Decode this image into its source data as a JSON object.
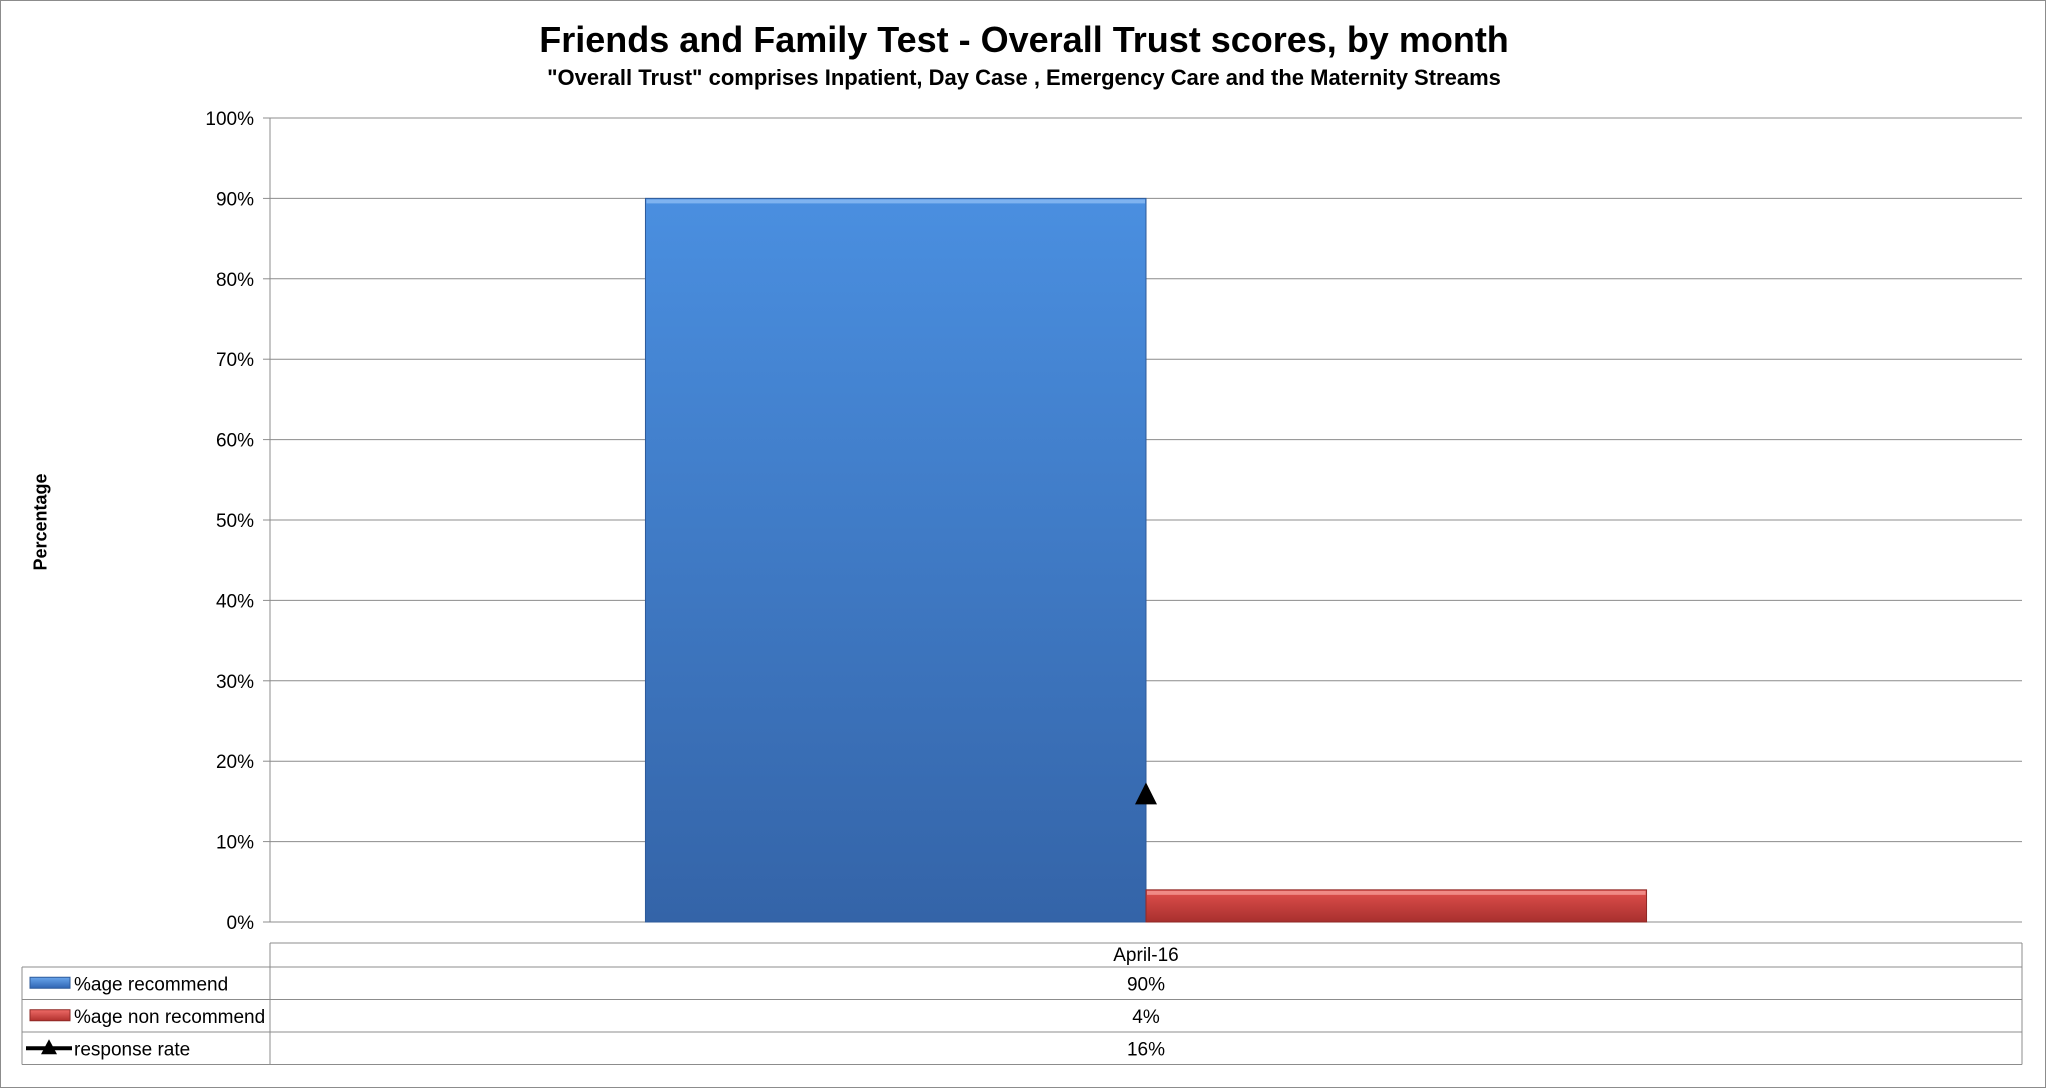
{
  "chart_data": {
    "type": "bar",
    "title": "Friends and Family Test - Overall Trust scores, by month",
    "subtitle": "\"Overall Trust\" comprises Inpatient, Day Case , Emergency Care and the Maternity Streams",
    "ylabel": "Percentage",
    "xlabel": "",
    "ylim": [
      0,
      100
    ],
    "yticks": [
      "0%",
      "10%",
      "20%",
      "30%",
      "40%",
      "50%",
      "60%",
      "70%",
      "80%",
      "90%",
      "100%"
    ],
    "grid": true,
    "legend": "data-table",
    "categories": [
      "April-16"
    ],
    "series": [
      {
        "name": "%age recommend",
        "kind": "bar",
        "values": [
          90
        ],
        "labels": [
          "90%"
        ],
        "color": "#3f7fd4"
      },
      {
        "name": "%age non recommend",
        "kind": "bar",
        "values": [
          4
        ],
        "labels": [
          "4%"
        ],
        "color": "#c9403d"
      },
      {
        "name": "response rate",
        "kind": "line-marker",
        "marker": "triangle",
        "values": [
          16
        ],
        "labels": [
          "16%"
        ],
        "color": "#000000"
      }
    ]
  }
}
